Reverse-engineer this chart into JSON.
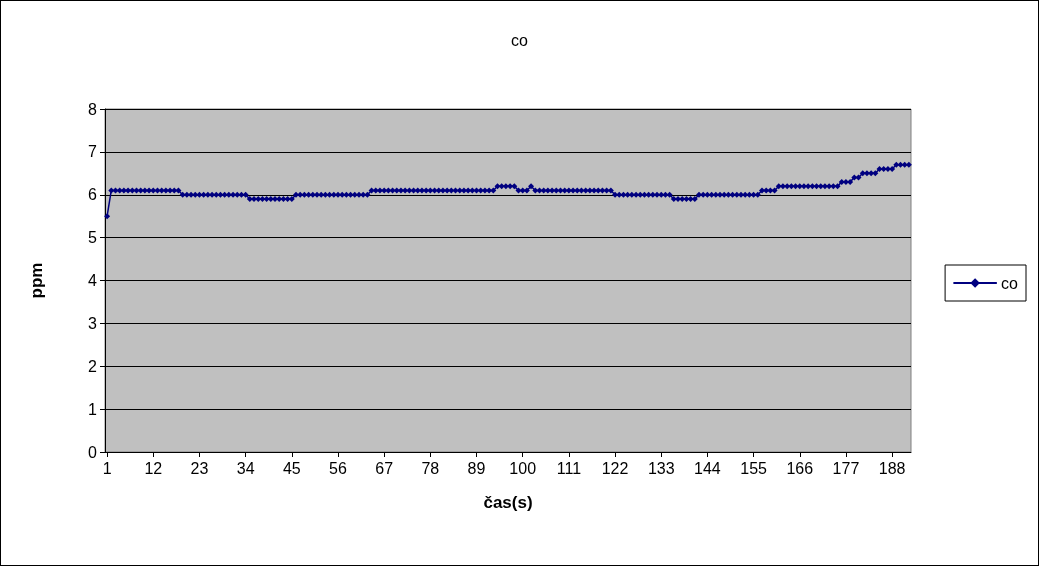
{
  "chart_data": {
    "type": "line",
    "title": "co",
    "xlabel": "čas(s)",
    "ylabel": "ppm",
    "categories": [
      "1",
      null,
      null,
      null,
      null,
      null,
      null,
      null,
      null,
      null,
      null,
      "12",
      null,
      null,
      null,
      null,
      null,
      null,
      null,
      null,
      null,
      null,
      "23",
      null,
      null,
      null,
      null,
      null,
      null,
      null,
      null,
      null,
      null,
      "34",
      null,
      null,
      null,
      null,
      null,
      null,
      null,
      null,
      null,
      null,
      "45",
      null,
      null,
      null,
      null,
      null,
      null,
      null,
      null,
      null,
      null,
      "56",
      null,
      null,
      null,
      null,
      null,
      null,
      null,
      null,
      null,
      null,
      "67",
      null,
      null,
      null,
      null,
      null,
      null,
      null,
      null,
      null,
      null,
      "78",
      null,
      null,
      null,
      null,
      null,
      null,
      null,
      null,
      null,
      null,
      "89",
      null,
      null,
      null,
      null,
      null,
      null,
      null,
      null,
      null,
      null,
      "100",
      null,
      null,
      null,
      null,
      null,
      null,
      null,
      null,
      null,
      null,
      "111",
      null,
      null,
      null,
      null,
      null,
      null,
      null,
      null,
      null,
      null,
      "122",
      null,
      null,
      null,
      null,
      null,
      null,
      null,
      null,
      null,
      null,
      "133",
      null,
      null,
      null,
      null,
      null,
      null,
      null,
      null,
      null,
      null,
      "144",
      null,
      null,
      null,
      null,
      null,
      null,
      null,
      null,
      null,
      null,
      "155",
      null,
      null,
      null,
      null,
      null,
      null,
      null,
      null,
      null,
      null,
      "166",
      null,
      null,
      null,
      null,
      null,
      null,
      null,
      null,
      null,
      null,
      "177",
      null,
      null,
      null,
      null,
      null,
      null,
      null,
      null,
      null,
      null,
      "188",
      null,
      null,
      null,
      null
    ],
    "series": [
      {
        "name": "co",
        "color": "#000080",
        "values": [
          5.5,
          6.1,
          6.1,
          6.1,
          6.1,
          6.1,
          6.1,
          6.1,
          6.1,
          6.1,
          6.1,
          6.1,
          6.1,
          6.1,
          6.1,
          6.1,
          6.1,
          6.1,
          6.0,
          6.0,
          6.0,
          6.0,
          6.0,
          6.0,
          6.0,
          6.0,
          6.0,
          6.0,
          6.0,
          6.0,
          6.0,
          6.0,
          6.0,
          6.0,
          5.9,
          5.9,
          5.9,
          5.9,
          5.9,
          5.9,
          5.9,
          5.9,
          5.9,
          5.9,
          5.9,
          6.0,
          6.0,
          6.0,
          6.0,
          6.0,
          6.0,
          6.0,
          6.0,
          6.0,
          6.0,
          6.0,
          6.0,
          6.0,
          6.0,
          6.0,
          6.0,
          6.0,
          6.0,
          6.1,
          6.1,
          6.1,
          6.1,
          6.1,
          6.1,
          6.1,
          6.1,
          6.1,
          6.1,
          6.1,
          6.1,
          6.1,
          6.1,
          6.1,
          6.1,
          6.1,
          6.1,
          6.1,
          6.1,
          6.1,
          6.1,
          6.1,
          6.1,
          6.1,
          6.1,
          6.1,
          6.1,
          6.1,
          6.1,
          6.2,
          6.2,
          6.2,
          6.2,
          6.2,
          6.1,
          6.1,
          6.1,
          6.2,
          6.1,
          6.1,
          6.1,
          6.1,
          6.1,
          6.1,
          6.1,
          6.1,
          6.1,
          6.1,
          6.1,
          6.1,
          6.1,
          6.1,
          6.1,
          6.1,
          6.1,
          6.1,
          6.1,
          6.0,
          6.0,
          6.0,
          6.0,
          6.0,
          6.0,
          6.0,
          6.0,
          6.0,
          6.0,
          6.0,
          6.0,
          6.0,
          6.0,
          5.9,
          5.9,
          5.9,
          5.9,
          5.9,
          5.9,
          6.0,
          6.0,
          6.0,
          6.0,
          6.0,
          6.0,
          6.0,
          6.0,
          6.0,
          6.0,
          6.0,
          6.0,
          6.0,
          6.0,
          6.0,
          6.1,
          6.1,
          6.1,
          6.1,
          6.2,
          6.2,
          6.2,
          6.2,
          6.2,
          6.2,
          6.2,
          6.2,
          6.2,
          6.2,
          6.2,
          6.2,
          6.2,
          6.2,
          6.2,
          6.3,
          6.3,
          6.3,
          6.4,
          6.4,
          6.5,
          6.5,
          6.5,
          6.5,
          6.6,
          6.6,
          6.6,
          6.6,
          6.7,
          6.7,
          6.7,
          6.7
        ]
      }
    ],
    "ylim": [
      0,
      8
    ],
    "yticks": [
      0,
      1,
      2,
      3,
      4,
      5,
      6,
      7,
      8
    ],
    "grid": "y",
    "legend": "right",
    "marker": "diamond",
    "line_style": "solid"
  }
}
